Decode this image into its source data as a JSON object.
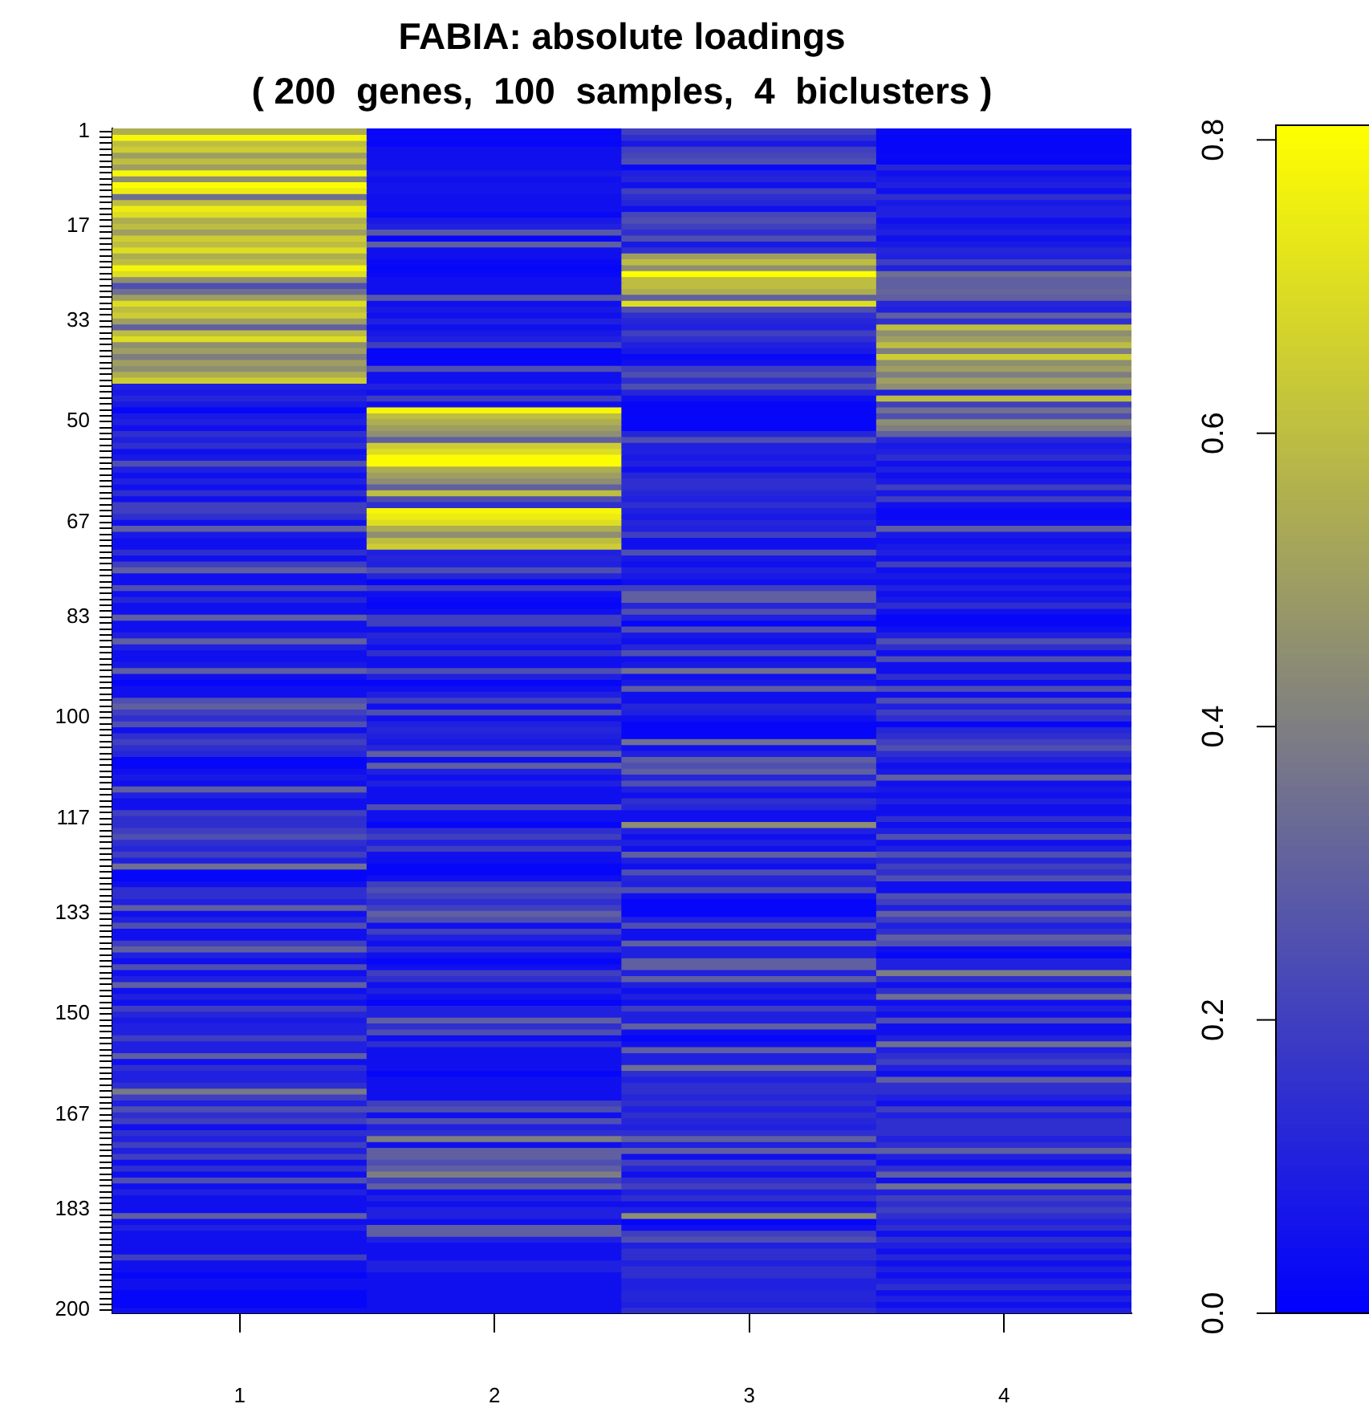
{
  "chart_data": {
    "type": "heatmap",
    "title": "FABIA: absolute loadings",
    "subtitle": "( 200  genes,  100  samples,  4  biclusters )",
    "categories": [
      "1",
      "2",
      "3",
      "4"
    ],
    "y_categories": [
      "1",
      null,
      null,
      null,
      null,
      null,
      null,
      null,
      null,
      null,
      null,
      null,
      null,
      null,
      null,
      null,
      "17",
      null,
      null,
      null,
      null,
      null,
      null,
      null,
      null,
      null,
      null,
      null,
      null,
      null,
      null,
      null,
      "33",
      null,
      null,
      null,
      null,
      null,
      null,
      null,
      null,
      null,
      null,
      null,
      null,
      null,
      null,
      null,
      null,
      "50",
      null,
      null,
      null,
      null,
      null,
      null,
      null,
      null,
      null,
      null,
      null,
      null,
      null,
      null,
      null,
      null,
      "67",
      null,
      null,
      null,
      null,
      null,
      null,
      null,
      null,
      null,
      null,
      null,
      null,
      null,
      null,
      null,
      "83",
      null,
      null,
      null,
      null,
      null,
      null,
      null,
      null,
      null,
      null,
      null,
      null,
      null,
      null,
      null,
      null,
      "100",
      null,
      null,
      null,
      null,
      null,
      null,
      null,
      null,
      null,
      null,
      null,
      null,
      null,
      null,
      null,
      null,
      "117",
      null,
      null,
      null,
      null,
      null,
      null,
      null,
      null,
      null,
      null,
      null,
      null,
      null,
      null,
      null,
      "133",
      null,
      null,
      null,
      null,
      null,
      null,
      null,
      null,
      null,
      null,
      null,
      null,
      null,
      null,
      null,
      null,
      "150",
      null,
      null,
      null,
      null,
      null,
      null,
      null,
      null,
      null,
      null,
      null,
      null,
      null,
      null,
      null,
      null,
      "167",
      null,
      null,
      null,
      null,
      null,
      null,
      null,
      null,
      null,
      null,
      null,
      null,
      null,
      null,
      null,
      "183",
      null,
      null,
      null,
      null,
      null,
      null,
      null,
      null,
      null,
      null,
      null,
      null,
      null,
      null,
      null,
      null,
      "200"
    ],
    "clim": [
      0,
      0.81
    ],
    "cticks": [
      {
        "value": 0,
        "label": "0.0"
      },
      0.2,
      0.4,
      0.6,
      0.8
    ],
    "cells": [
      [
        0.55,
        0.02,
        0.2,
        0.03
      ],
      [
        0.78,
        0.03,
        0.15,
        0.02
      ],
      [
        0.6,
        0.02,
        0.08,
        0.02
      ],
      [
        0.65,
        0.05,
        0.2,
        0.02
      ],
      [
        0.5,
        0.05,
        0.22,
        0.03
      ],
      [
        0.6,
        0.05,
        0.25,
        0.02
      ],
      [
        0.5,
        0.05,
        0.03,
        0.12
      ],
      [
        0.78,
        0.08,
        0.1,
        0.05
      ],
      [
        0.45,
        0.05,
        0.12,
        0.08
      ],
      [
        0.8,
        0.06,
        0.05,
        0.1
      ],
      [
        0.75,
        0.06,
        0.2,
        0.05
      ],
      [
        0.35,
        0.05,
        0.15,
        0.15
      ],
      [
        0.6,
        0.05,
        0.12,
        0.08
      ],
      [
        0.75,
        0.05,
        0.05,
        0.1
      ],
      [
        0.7,
        0.03,
        0.22,
        0.1
      ],
      [
        0.55,
        0.08,
        0.25,
        0.05
      ],
      [
        0.6,
        0.1,
        0.2,
        0.08
      ],
      [
        0.5,
        0.28,
        0.15,
        0.1
      ],
      [
        0.65,
        0.02,
        0.25,
        0.05
      ],
      [
        0.6,
        0.3,
        0.08,
        0.08
      ],
      [
        0.7,
        0.05,
        0.15,
        0.12
      ],
      [
        0.55,
        0.05,
        0.5,
        0.1
      ],
      [
        0.6,
        0.03,
        0.6,
        0.2
      ],
      [
        0.78,
        0.02,
        0.45,
        0.1
      ],
      [
        0.7,
        0.03,
        0.8,
        0.35
      ],
      [
        0.45,
        0.05,
        0.6,
        0.3
      ],
      [
        0.25,
        0.05,
        0.6,
        0.3
      ],
      [
        0.35,
        0.05,
        0.55,
        0.32
      ],
      [
        0.5,
        0.28,
        0.3,
        0.3
      ],
      [
        0.7,
        0.05,
        0.7,
        0.12
      ],
      [
        0.6,
        0.08,
        0.25,
        0.1
      ],
      [
        0.65,
        0.05,
        0.15,
        0.3
      ],
      [
        0.5,
        0.1,
        0.12,
        0.15
      ],
      [
        0.3,
        0.05,
        0.1,
        0.6
      ],
      [
        0.6,
        0.08,
        0.2,
        0.45
      ],
      [
        0.7,
        0.1,
        0.15,
        0.5
      ],
      [
        0.45,
        0.2,
        0.1,
        0.6
      ],
      [
        0.5,
        0.02,
        0.08,
        0.4
      ],
      [
        0.4,
        0.02,
        0.03,
        0.65
      ],
      [
        0.5,
        0.02,
        0.05,
        0.45
      ],
      [
        0.45,
        0.25,
        0.2,
        0.5
      ],
      [
        0.55,
        0.05,
        0.25,
        0.4
      ],
      [
        0.65,
        0.05,
        0.15,
        0.5
      ],
      [
        0.1,
        0.1,
        0.25,
        0.45
      ],
      [
        0.08,
        0.05,
        0.12,
        0.1
      ],
      [
        0.12,
        0.2,
        0.05,
        0.6
      ],
      [
        0.08,
        0.05,
        0.02,
        0.2
      ],
      [
        0.02,
        0.78,
        0.02,
        0.35
      ],
      [
        0.08,
        0.6,
        0.02,
        0.25
      ],
      [
        0.1,
        0.55,
        0.02,
        0.45
      ],
      [
        0.05,
        0.5,
        0.02,
        0.4
      ],
      [
        0.15,
        0.45,
        0.12,
        0.3
      ],
      [
        0.1,
        0.3,
        0.25,
        0.12
      ],
      [
        0.15,
        0.65,
        0.1,
        0.08
      ],
      [
        0.05,
        0.7,
        0.1,
        0.1
      ],
      [
        0.08,
        0.8,
        0.08,
        0.15
      ],
      [
        0.25,
        0.8,
        0.1,
        0.05
      ],
      [
        0.1,
        0.55,
        0.05,
        0.1
      ],
      [
        0.05,
        0.5,
        0.12,
        0.05
      ],
      [
        0.1,
        0.45,
        0.15,
        0.08
      ],
      [
        0.05,
        0.3,
        0.15,
        0.2
      ],
      [
        0.15,
        0.6,
        0.12,
        0.08
      ],
      [
        0.05,
        0.25,
        0.1,
        0.2
      ],
      [
        0.2,
        0.15,
        0.15,
        0.05
      ],
      [
        0.2,
        0.78,
        0.1,
        0.03
      ],
      [
        0.15,
        0.75,
        0.08,
        0.03
      ],
      [
        0.05,
        0.7,
        0.12,
        0.05
      ],
      [
        0.3,
        0.55,
        0.1,
        0.3
      ],
      [
        0.08,
        0.45,
        0.2,
        0.08
      ],
      [
        0.05,
        0.6,
        0.05,
        0.05
      ],
      [
        0.05,
        0.65,
        0.05,
        0.08
      ],
      [
        0.15,
        0.1,
        0.25,
        0.1
      ],
      [
        0.05,
        0.12,
        0.08,
        0.05
      ],
      [
        0.2,
        0.1,
        0.05,
        0.2
      ],
      [
        0.3,
        0.25,
        0.1,
        0.05
      ],
      [
        0.05,
        0.12,
        0.08,
        0.08
      ],
      [
        0.05,
        0.02,
        0.05,
        0.05
      ],
      [
        0.25,
        0.2,
        0.2,
        0.1
      ],
      [
        0.05,
        0.05,
        0.3,
        0.05
      ],
      [
        0.12,
        0.03,
        0.3,
        0.08
      ],
      [
        0.05,
        0.02,
        0.12,
        0.15
      ],
      [
        0.05,
        0.05,
        0.25,
        0.05
      ],
      [
        0.3,
        0.2,
        0.1,
        0.02
      ],
      [
        0.05,
        0.2,
        0.02,
        0.02
      ],
      [
        0.05,
        0.05,
        0.25,
        0.05
      ],
      [
        0.1,
        0.12,
        0.08,
        0.1
      ],
      [
        0.3,
        0.1,
        0.05,
        0.25
      ],
      [
        0.1,
        0.05,
        0.12,
        0.15
      ],
      [
        0.05,
        0.15,
        0.25,
        0.05
      ],
      [
        0.05,
        0.05,
        0.05,
        0.25
      ],
      [
        0.08,
        0.05,
        0.08,
        0.05
      ],
      [
        0.3,
        0.25,
        0.35,
        0.05
      ],
      [
        0.05,
        0.1,
        0.05,
        0.15
      ],
      [
        0.02,
        0.02,
        0.08,
        0.05
      ],
      [
        0.05,
        0.05,
        0.3,
        0.25
      ],
      [
        0.05,
        0.1,
        0.05,
        0.05
      ],
      [
        0.25,
        0.2,
        0.05,
        0.25
      ],
      [
        0.3,
        0.05,
        0.12,
        0.1
      ],
      [
        0.2,
        0.25,
        0.1,
        0.2
      ],
      [
        0.15,
        0.05,
        0.05,
        0.15
      ],
      [
        0.25,
        0.1,
        0.02,
        0.02
      ],
      [
        0.05,
        0.12,
        0.02,
        0.12
      ],
      [
        0.15,
        0.1,
        0.02,
        0.15
      ],
      [
        0.2,
        0.08,
        0.35,
        0.2
      ],
      [
        0.15,
        0.12,
        0.05,
        0.25
      ],
      [
        0.12,
        0.3,
        0.1,
        0.15
      ],
      [
        0.02,
        0.05,
        0.3,
        0.1
      ],
      [
        0.02,
        0.3,
        0.25,
        0.05
      ],
      [
        0.05,
        0.1,
        0.3,
        0.08
      ],
      [
        0.08,
        0.05,
        0.12,
        0.3
      ],
      [
        0.05,
        0.1,
        0.25,
        0.05
      ],
      [
        0.3,
        0.05,
        0.1,
        0.08
      ],
      [
        0.1,
        0.05,
        0.05,
        0.05
      ],
      [
        0.05,
        0.05,
        0.15,
        0.1
      ],
      [
        0.05,
        0.25,
        0.12,
        0.05
      ],
      [
        0.2,
        0.05,
        0.05,
        0.05
      ],
      [
        0.15,
        0.05,
        0.05,
        0.15
      ],
      [
        0.15,
        0.02,
        0.45,
        0.05
      ],
      [
        0.2,
        0.15,
        0.1,
        0.1
      ],
      [
        0.25,
        0.2,
        0.05,
        0.25
      ],
      [
        0.15,
        0.1,
        0.1,
        0.05
      ],
      [
        0.12,
        0.2,
        0.05,
        0.1
      ],
      [
        0.2,
        0.05,
        0.3,
        0.25
      ],
      [
        0.1,
        0.05,
        0.1,
        0.12
      ],
      [
        0.35,
        0.02,
        0.05,
        0.2
      ],
      [
        0.02,
        0.02,
        0.25,
        0.15
      ],
      [
        0.02,
        0.05,
        0.12,
        0.25
      ],
      [
        0.05,
        0.2,
        0.1,
        0.05
      ],
      [
        0.15,
        0.25,
        0.25,
        0.05
      ],
      [
        0.15,
        0.2,
        0.05,
        0.25
      ],
      [
        0.1,
        0.15,
        0.02,
        0.2
      ],
      [
        0.3,
        0.2,
        0.02,
        0.1
      ],
      [
        0.05,
        0.3,
        0.02,
        0.3
      ],
      [
        0.1,
        0.25,
        0.1,
        0.2
      ],
      [
        0.25,
        0.05,
        0.25,
        0.1
      ],
      [
        0.05,
        0.2,
        0.05,
        0.15
      ],
      [
        0.05,
        0.1,
        0.05,
        0.3
      ],
      [
        0.2,
        0.05,
        0.3,
        0.25
      ],
      [
        0.3,
        0.15,
        0.1,
        0.05
      ],
      [
        0.1,
        0.05,
        0.1,
        0.02
      ],
      [
        0.05,
        0.02,
        0.3,
        0.1
      ],
      [
        0.25,
        0.05,
        0.3,
        0.1
      ],
      [
        0.05,
        0.2,
        0.1,
        0.4
      ],
      [
        0.1,
        0.15,
        0.3,
        0.15
      ],
      [
        0.3,
        0.05,
        0.1,
        0.05
      ],
      [
        0.05,
        0.1,
        0.05,
        0.15
      ],
      [
        0.1,
        0.05,
        0.1,
        0.35
      ],
      [
        0.05,
        0.02,
        0.05,
        0.05
      ],
      [
        0.2,
        0.1,
        0.2,
        0.1
      ],
      [
        0.12,
        0.1,
        0.1,
        0.05
      ],
      [
        0.08,
        0.3,
        0.1,
        0.25
      ],
      [
        0.1,
        0.15,
        0.3,
        0.05
      ],
      [
        0.1,
        0.25,
        0.05,
        0.05
      ],
      [
        0.2,
        0.05,
        0.02,
        0.1
      ],
      [
        0.1,
        0.15,
        0.05,
        0.35
      ],
      [
        0.1,
        0.05,
        0.3,
        0.1
      ],
      [
        0.3,
        0.05,
        0.1,
        0.15
      ],
      [
        0.05,
        0.05,
        0.1,
        0.2
      ],
      [
        0.15,
        0.05,
        0.35,
        0.1
      ],
      [
        0.1,
        0.02,
        0.15,
        0.05
      ],
      [
        0.1,
        0.05,
        0.1,
        0.3
      ],
      [
        0.15,
        0.05,
        0.15,
        0.15
      ],
      [
        0.38,
        0.05,
        0.15,
        0.15
      ],
      [
        0.2,
        0.05,
        0.12,
        0.1
      ],
      [
        0.1,
        0.2,
        0.15,
        0.05
      ],
      [
        0.25,
        0.25,
        0.1,
        0.2
      ],
      [
        0.15,
        0.05,
        0.15,
        0.1
      ],
      [
        0.2,
        0.25,
        0.12,
        0.15
      ],
      [
        0.05,
        0.1,
        0.1,
        0.15
      ],
      [
        0.15,
        0.15,
        0.15,
        0.15
      ],
      [
        0.1,
        0.4,
        0.3,
        0.1
      ],
      [
        0.2,
        0.05,
        0.1,
        0.15
      ],
      [
        0.1,
        0.3,
        0.3,
        0.3
      ],
      [
        0.2,
        0.3,
        0.05,
        0.1
      ],
      [
        0.05,
        0.25,
        0.2,
        0.05
      ],
      [
        0.15,
        0.3,
        0.12,
        0.15
      ],
      [
        0.05,
        0.4,
        0.05,
        0.3
      ],
      [
        0.25,
        0.2,
        0.15,
        0.05
      ],
      [
        0.05,
        0.3,
        0.2,
        0.35
      ],
      [
        0.1,
        0.05,
        0.1,
        0.1
      ],
      [
        0.05,
        0.1,
        0.15,
        0.2
      ],
      [
        0.05,
        0.05,
        0.05,
        0.15
      ],
      [
        0.05,
        0.1,
        0.1,
        0.2
      ],
      [
        0.3,
        0.1,
        0.45,
        0.15
      ],
      [
        0.05,
        0.05,
        0.02,
        0.1
      ],
      [
        0.1,
        0.3,
        0.05,
        0.15
      ],
      [
        0.05,
        0.3,
        0.2,
        0.05
      ],
      [
        0.05,
        0.1,
        0.25,
        0.15
      ],
      [
        0.05,
        0.05,
        0.1,
        0.1
      ],
      [
        0.05,
        0.05,
        0.15,
        0.05
      ],
      [
        0.2,
        0.05,
        0.15,
        0.12
      ],
      [
        0.05,
        0.1,
        0.1,
        0.05
      ],
      [
        0.05,
        0.1,
        0.15,
        0.1
      ],
      [
        0.02,
        0.05,
        0.15,
        0.05
      ],
      [
        0.05,
        0.05,
        0.1,
        0.1
      ],
      [
        0.05,
        0.05,
        0.1,
        0.15
      ],
      [
        0.02,
        0.05,
        0.12,
        0.05
      ],
      [
        0.02,
        0.05,
        0.12,
        0.1
      ],
      [
        0.02,
        0.05,
        0.1,
        0.05
      ],
      [
        0.05,
        0.05,
        0.15,
        0.1
      ]
    ]
  }
}
